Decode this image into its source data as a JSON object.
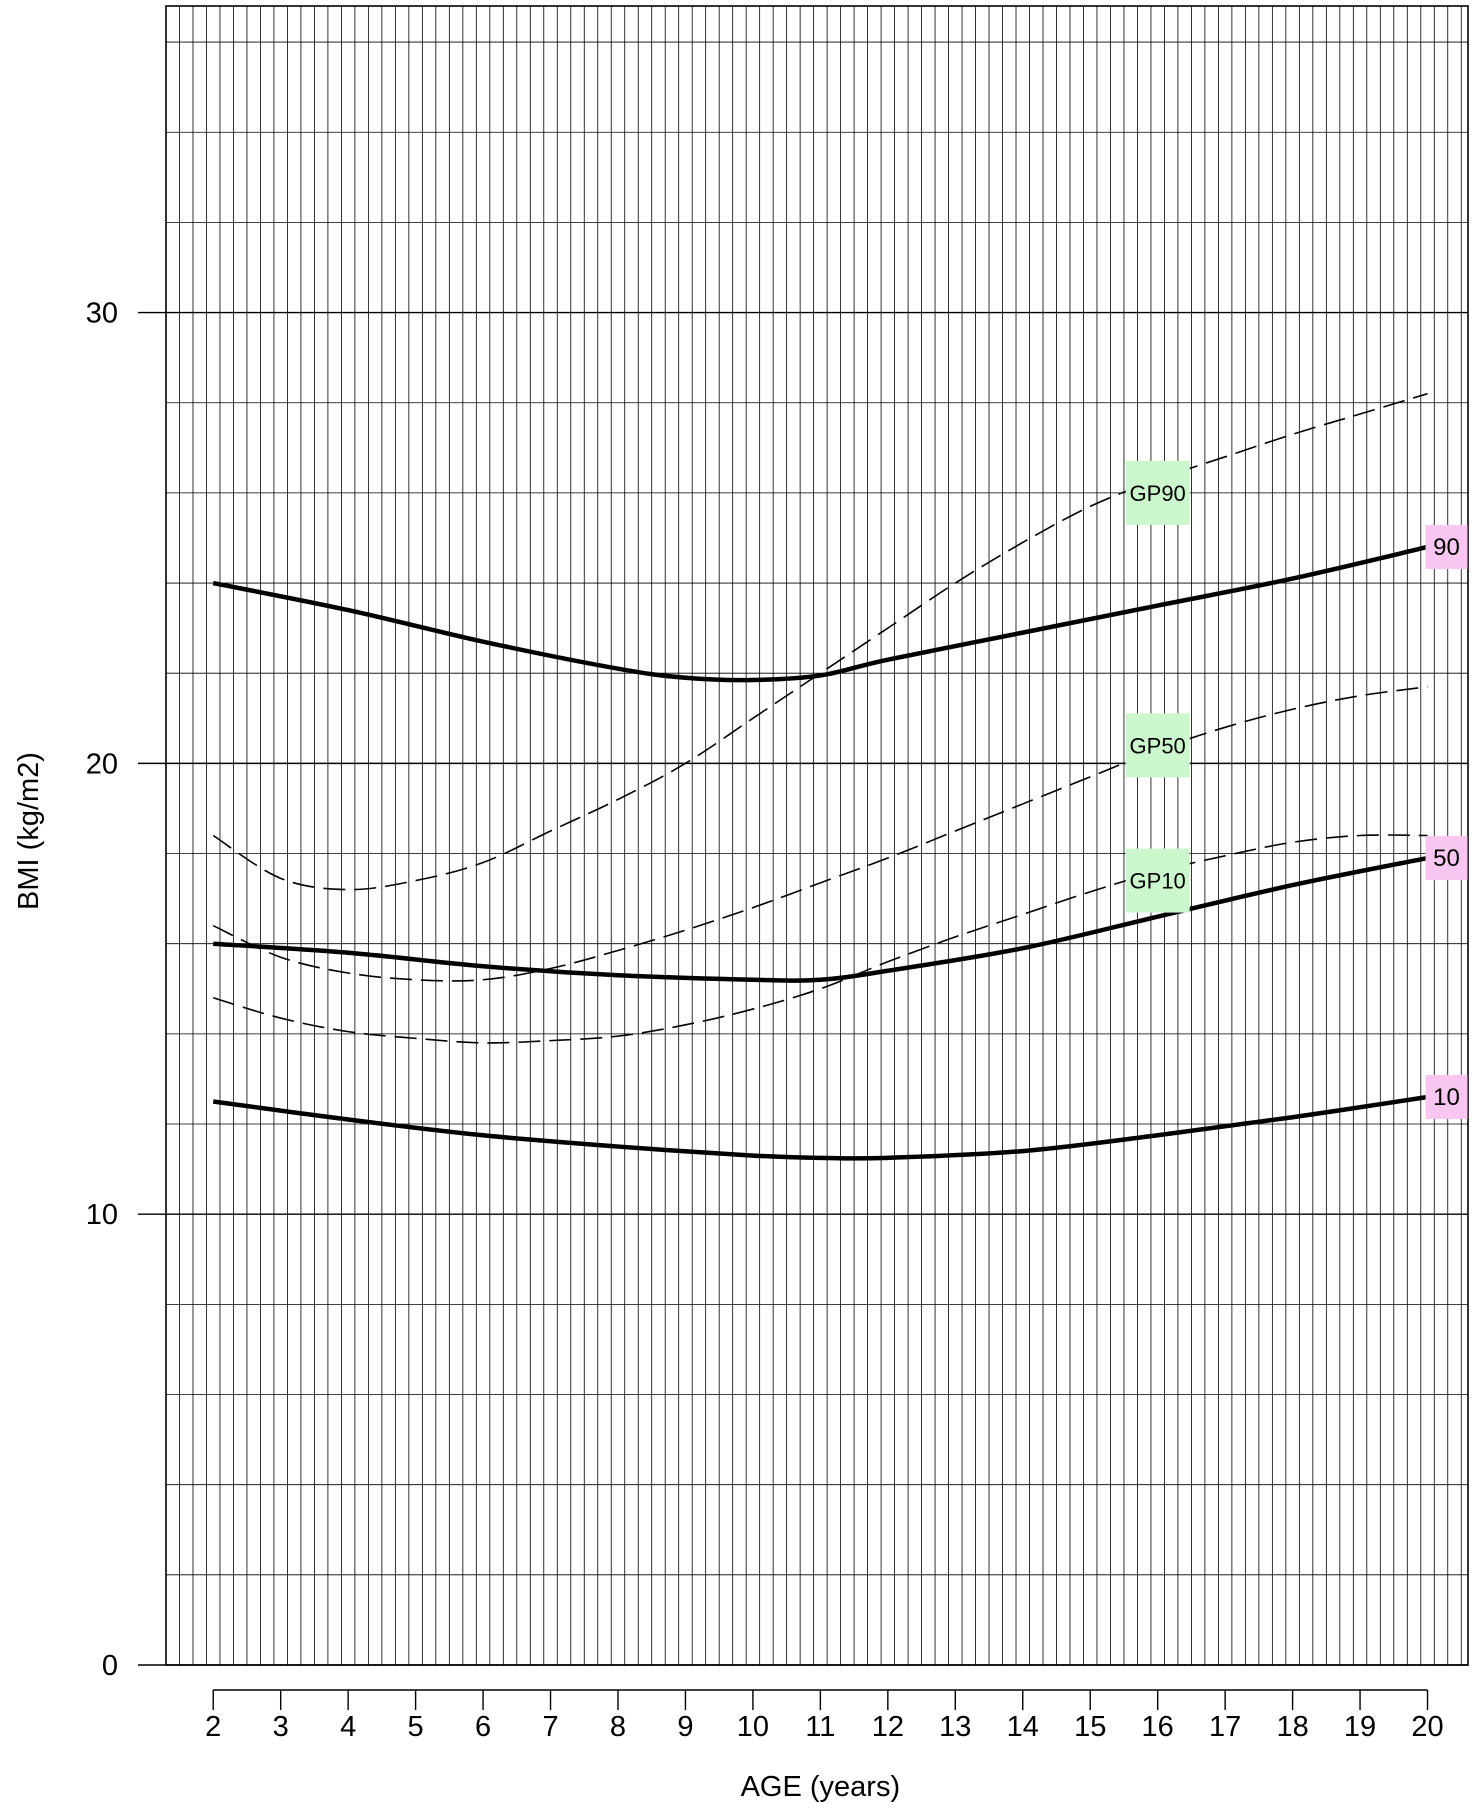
{
  "chart_data": {
    "type": "line",
    "title": "",
    "xlabel": "AGE (years)",
    "ylabel": "BMI (kg/m2)",
    "xlim": [
      1.3,
      20.6
    ],
    "ylim": [
      0,
      36.8
    ],
    "xticks": [
      2,
      3,
      4,
      5,
      6,
      7,
      8,
      9,
      10,
      11,
      12,
      13,
      14,
      15,
      16,
      17,
      18,
      19,
      20
    ],
    "yticks": [
      0,
      10,
      20,
      30
    ],
    "grid": {
      "x_minor_step": 0.2,
      "x_major_step": 1,
      "y_minor_step": 2,
      "y_major_step": 10
    },
    "series": [
      {
        "name": "90",
        "style": "solid-thick",
        "label_bg": "#f9c6f1",
        "x": [
          2,
          4,
          6,
          8,
          9,
          10,
          11,
          12,
          14,
          16,
          18,
          20
        ],
        "y": [
          24.0,
          23.4,
          22.7,
          22.1,
          21.9,
          21.85,
          21.95,
          22.3,
          22.9,
          23.5,
          24.1,
          24.8
        ]
      },
      {
        "name": "50",
        "style": "solid-thick",
        "label_bg": "#f9c6f1",
        "x": [
          2,
          4,
          6,
          8,
          10,
          11,
          12,
          14,
          16,
          18,
          20
        ],
        "y": [
          16.0,
          15.8,
          15.5,
          15.3,
          15.2,
          15.2,
          15.4,
          15.9,
          16.6,
          17.3,
          17.9
        ]
      },
      {
        "name": "10",
        "style": "solid-thick",
        "label_bg": "#f9c6f1",
        "x": [
          2,
          4,
          6,
          8,
          10,
          11,
          12,
          14,
          16,
          18,
          20
        ],
        "y": [
          12.5,
          12.1,
          11.75,
          11.5,
          11.3,
          11.25,
          11.25,
          11.4,
          11.75,
          12.15,
          12.6
        ]
      },
      {
        "name": "GP90",
        "style": "dashed",
        "label_bg": "#ccf7cc",
        "label_x": 16,
        "label_y": 26.0,
        "x": [
          2,
          3,
          4,
          5,
          6,
          7,
          8,
          9,
          10,
          11,
          12,
          13,
          14,
          15,
          16,
          17,
          18,
          19,
          20
        ],
        "y": [
          18.4,
          17.45,
          17.2,
          17.4,
          17.8,
          18.5,
          19.2,
          20.0,
          21.0,
          22.0,
          23.0,
          24.0,
          24.9,
          25.7,
          26.3,
          26.8,
          27.3,
          27.75,
          28.2
        ]
      },
      {
        "name": "GP50",
        "style": "dashed",
        "label_bg": "#ccf7cc",
        "label_x": 16,
        "label_y": 20.4,
        "x": [
          2,
          3,
          4,
          5,
          6,
          7,
          8,
          9,
          10,
          11,
          12,
          13,
          14,
          15,
          16,
          17,
          18,
          19,
          20
        ],
        "y": [
          16.4,
          15.7,
          15.35,
          15.2,
          15.2,
          15.45,
          15.85,
          16.3,
          16.8,
          17.35,
          17.9,
          18.5,
          19.1,
          19.7,
          20.3,
          20.8,
          21.2,
          21.5,
          21.7
        ]
      },
      {
        "name": "GP10",
        "style": "dashed",
        "label_bg": "#ccf7cc",
        "label_x": 16,
        "label_y": 17.4,
        "x": [
          2,
          3,
          4,
          5,
          6,
          7,
          8,
          9,
          10,
          11,
          12,
          13,
          14,
          15,
          16,
          17,
          18,
          19,
          20
        ],
        "y": [
          14.8,
          14.35,
          14.05,
          13.9,
          13.8,
          13.85,
          13.95,
          14.2,
          14.55,
          15.0,
          15.6,
          16.15,
          16.65,
          17.15,
          17.6,
          17.95,
          18.25,
          18.4,
          18.4
        ]
      }
    ]
  }
}
